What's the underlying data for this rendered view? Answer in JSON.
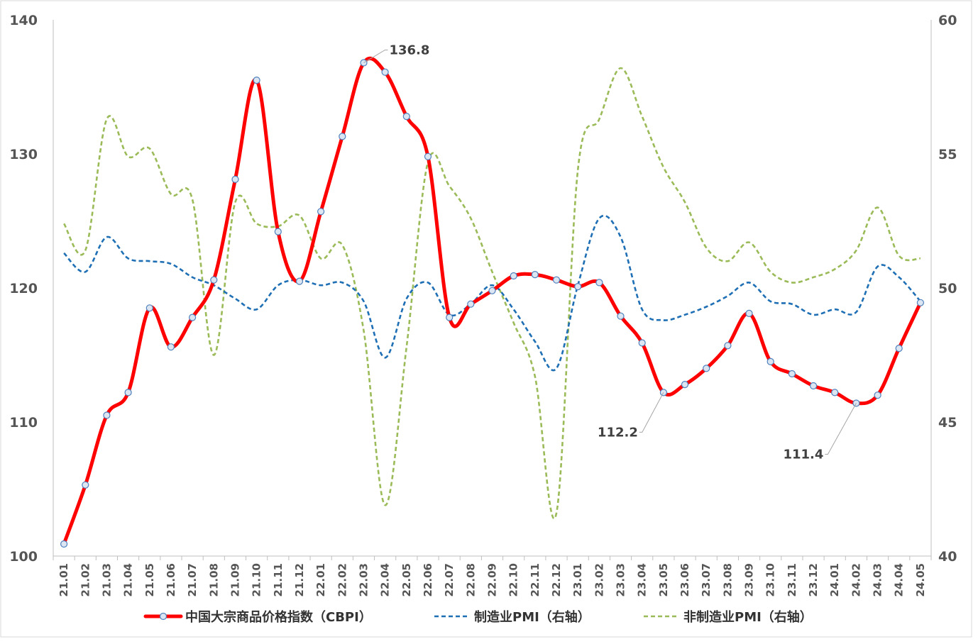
{
  "chart_data": {
    "type": "line",
    "x": [
      "21.01",
      "21.02",
      "21.03",
      "21.04",
      "21.05",
      "21.06",
      "21.07",
      "21.08",
      "21.09",
      "21.10",
      "21.11",
      "21.12",
      "22.01",
      "22.02",
      "22.03",
      "22.04",
      "22.05",
      "22.06",
      "22.07",
      "22.08",
      "22.09",
      "22.10",
      "22.11",
      "22.12",
      "23.01",
      "23.02",
      "23.03",
      "23.04",
      "23.05",
      "23.06",
      "23.07",
      "23.08",
      "23.09",
      "23.10",
      "23.11",
      "23.12",
      "24.01",
      "24.02",
      "24.03",
      "24.04",
      "24.05"
    ],
    "y_left": {
      "range": [
        100,
        140
      ],
      "ticks": [
        "100",
        "110",
        "120",
        "130",
        "140"
      ]
    },
    "y_right": {
      "range": [
        40,
        60
      ],
      "ticks": [
        "40",
        "45",
        "50",
        "55",
        "60"
      ]
    },
    "grid": false,
    "legend_position": "bottom",
    "series": [
      {
        "name": "中国大宗商品价格指数（CBPI）",
        "axis": "left",
        "color": "#FF0000",
        "style": "solid-markers",
        "values": [
          100.9,
          105.3,
          110.5,
          112.2,
          118.5,
          115.6,
          117.8,
          120.6,
          128.1,
          135.5,
          124.2,
          120.5,
          125.7,
          131.3,
          136.8,
          136.1,
          132.8,
          129.8,
          117.8,
          118.8,
          119.8,
          120.9,
          121.0,
          120.6,
          120.1,
          120.4,
          117.9,
          115.9,
          112.2,
          112.8,
          114.0,
          115.7,
          118.1,
          114.5,
          113.6,
          112.7,
          112.2,
          111.4,
          112.0,
          115.5,
          118.9
        ]
      },
      {
        "name": "制造业PMI（右轴）",
        "axis": "right",
        "color": "#1F6FB5",
        "style": "dashed",
        "values": [
          51.3,
          50.6,
          51.9,
          51.1,
          51.0,
          50.9,
          50.4,
          50.1,
          49.6,
          49.2,
          50.1,
          50.3,
          50.1,
          50.2,
          49.5,
          47.4,
          49.6,
          50.2,
          49.0,
          49.4,
          50.1,
          49.2,
          48.0,
          47.0,
          50.1,
          52.6,
          51.9,
          49.2,
          48.8,
          49.0,
          49.3,
          49.7,
          50.2,
          49.5,
          49.4,
          49.0,
          49.2,
          49.1,
          50.8,
          50.4,
          49.5
        ]
      },
      {
        "name": "非制造业PMI（右轴）",
        "axis": "right",
        "color": "#9BBB59",
        "style": "dashed",
        "values": [
          52.4,
          51.4,
          56.3,
          54.9,
          55.2,
          53.5,
          53.3,
          47.5,
          53.2,
          52.4,
          52.3,
          52.7,
          51.1,
          51.6,
          48.4,
          41.9,
          47.8,
          54.7,
          53.8,
          52.6,
          50.6,
          48.7,
          46.7,
          41.6,
          54.4,
          56.3,
          58.2,
          56.4,
          54.5,
          53.2,
          51.5,
          51.0,
          51.7,
          50.6,
          50.2,
          50.4,
          50.7,
          51.4,
          53.0,
          51.2,
          51.1
        ]
      }
    ],
    "annotations": [
      {
        "series": 0,
        "index": 14,
        "text": "136.8"
      },
      {
        "series": 0,
        "index": 28,
        "text": "112.2"
      },
      {
        "series": 0,
        "index": 37,
        "text": "111.4"
      }
    ]
  },
  "legend": {
    "cbpi": "中国大宗商品价格指数（CBPI）",
    "pmi_mfg": "制造业PMI（右轴）",
    "pmi_nonmfg": "非制造业PMI（右轴）"
  }
}
